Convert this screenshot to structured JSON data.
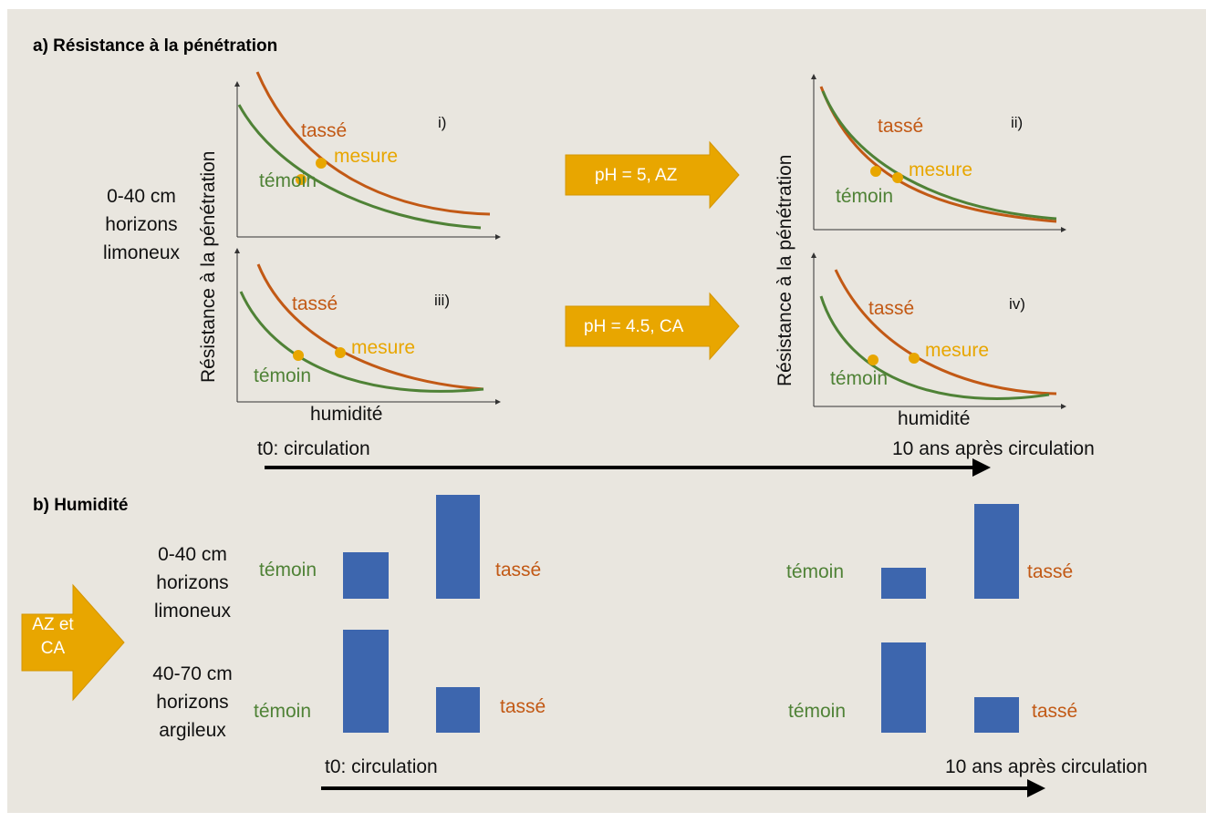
{
  "section_a": {
    "title": "a) Résistance à la pénétration",
    "depth_label": [
      "0-40 cm",
      "horizons",
      "limoneux"
    ],
    "y_axis_label": "Résistance à la pénétration",
    "x_axis_label": "humidité",
    "panels": [
      {
        "id": "i)",
        "compacted": "tassé",
        "control": "témoin",
        "measure": "mesure"
      },
      {
        "id": "ii)",
        "compacted": "tassé",
        "control": "témoin",
        "measure": "mesure"
      },
      {
        "id": "iii)",
        "compacted": "tassé",
        "control": "témoin",
        "measure": "mesure"
      },
      {
        "id": "iv)",
        "compacted": "tassé",
        "control": "témoin",
        "measure": "mesure"
      }
    ],
    "arrow_top": "pH = 5, AZ",
    "arrow_bottom": "pH = 4.5, CA",
    "timeline_start": "t0: circulation",
    "timeline_end": "10 ans après circulation"
  },
  "section_b": {
    "title": "b) Humidité",
    "side_arrow": [
      "AZ et",
      "CA"
    ],
    "depth_top": [
      "0-40 cm",
      "horizons",
      "limoneux"
    ],
    "depth_bottom": [
      "40-70 cm",
      "horizons",
      "argileux"
    ],
    "control": "témoin",
    "compacted": "tassé",
    "timeline_start": "t0: circulation",
    "timeline_end": "10 ans après circulation"
  },
  "colors": {
    "background": "#e9e6df",
    "control_curve": "#4f8236",
    "compacted_curve": "#c25915",
    "measure_point": "#e8a600",
    "bar": "#3d66ae",
    "arrow_fill": "#e8a600"
  }
}
